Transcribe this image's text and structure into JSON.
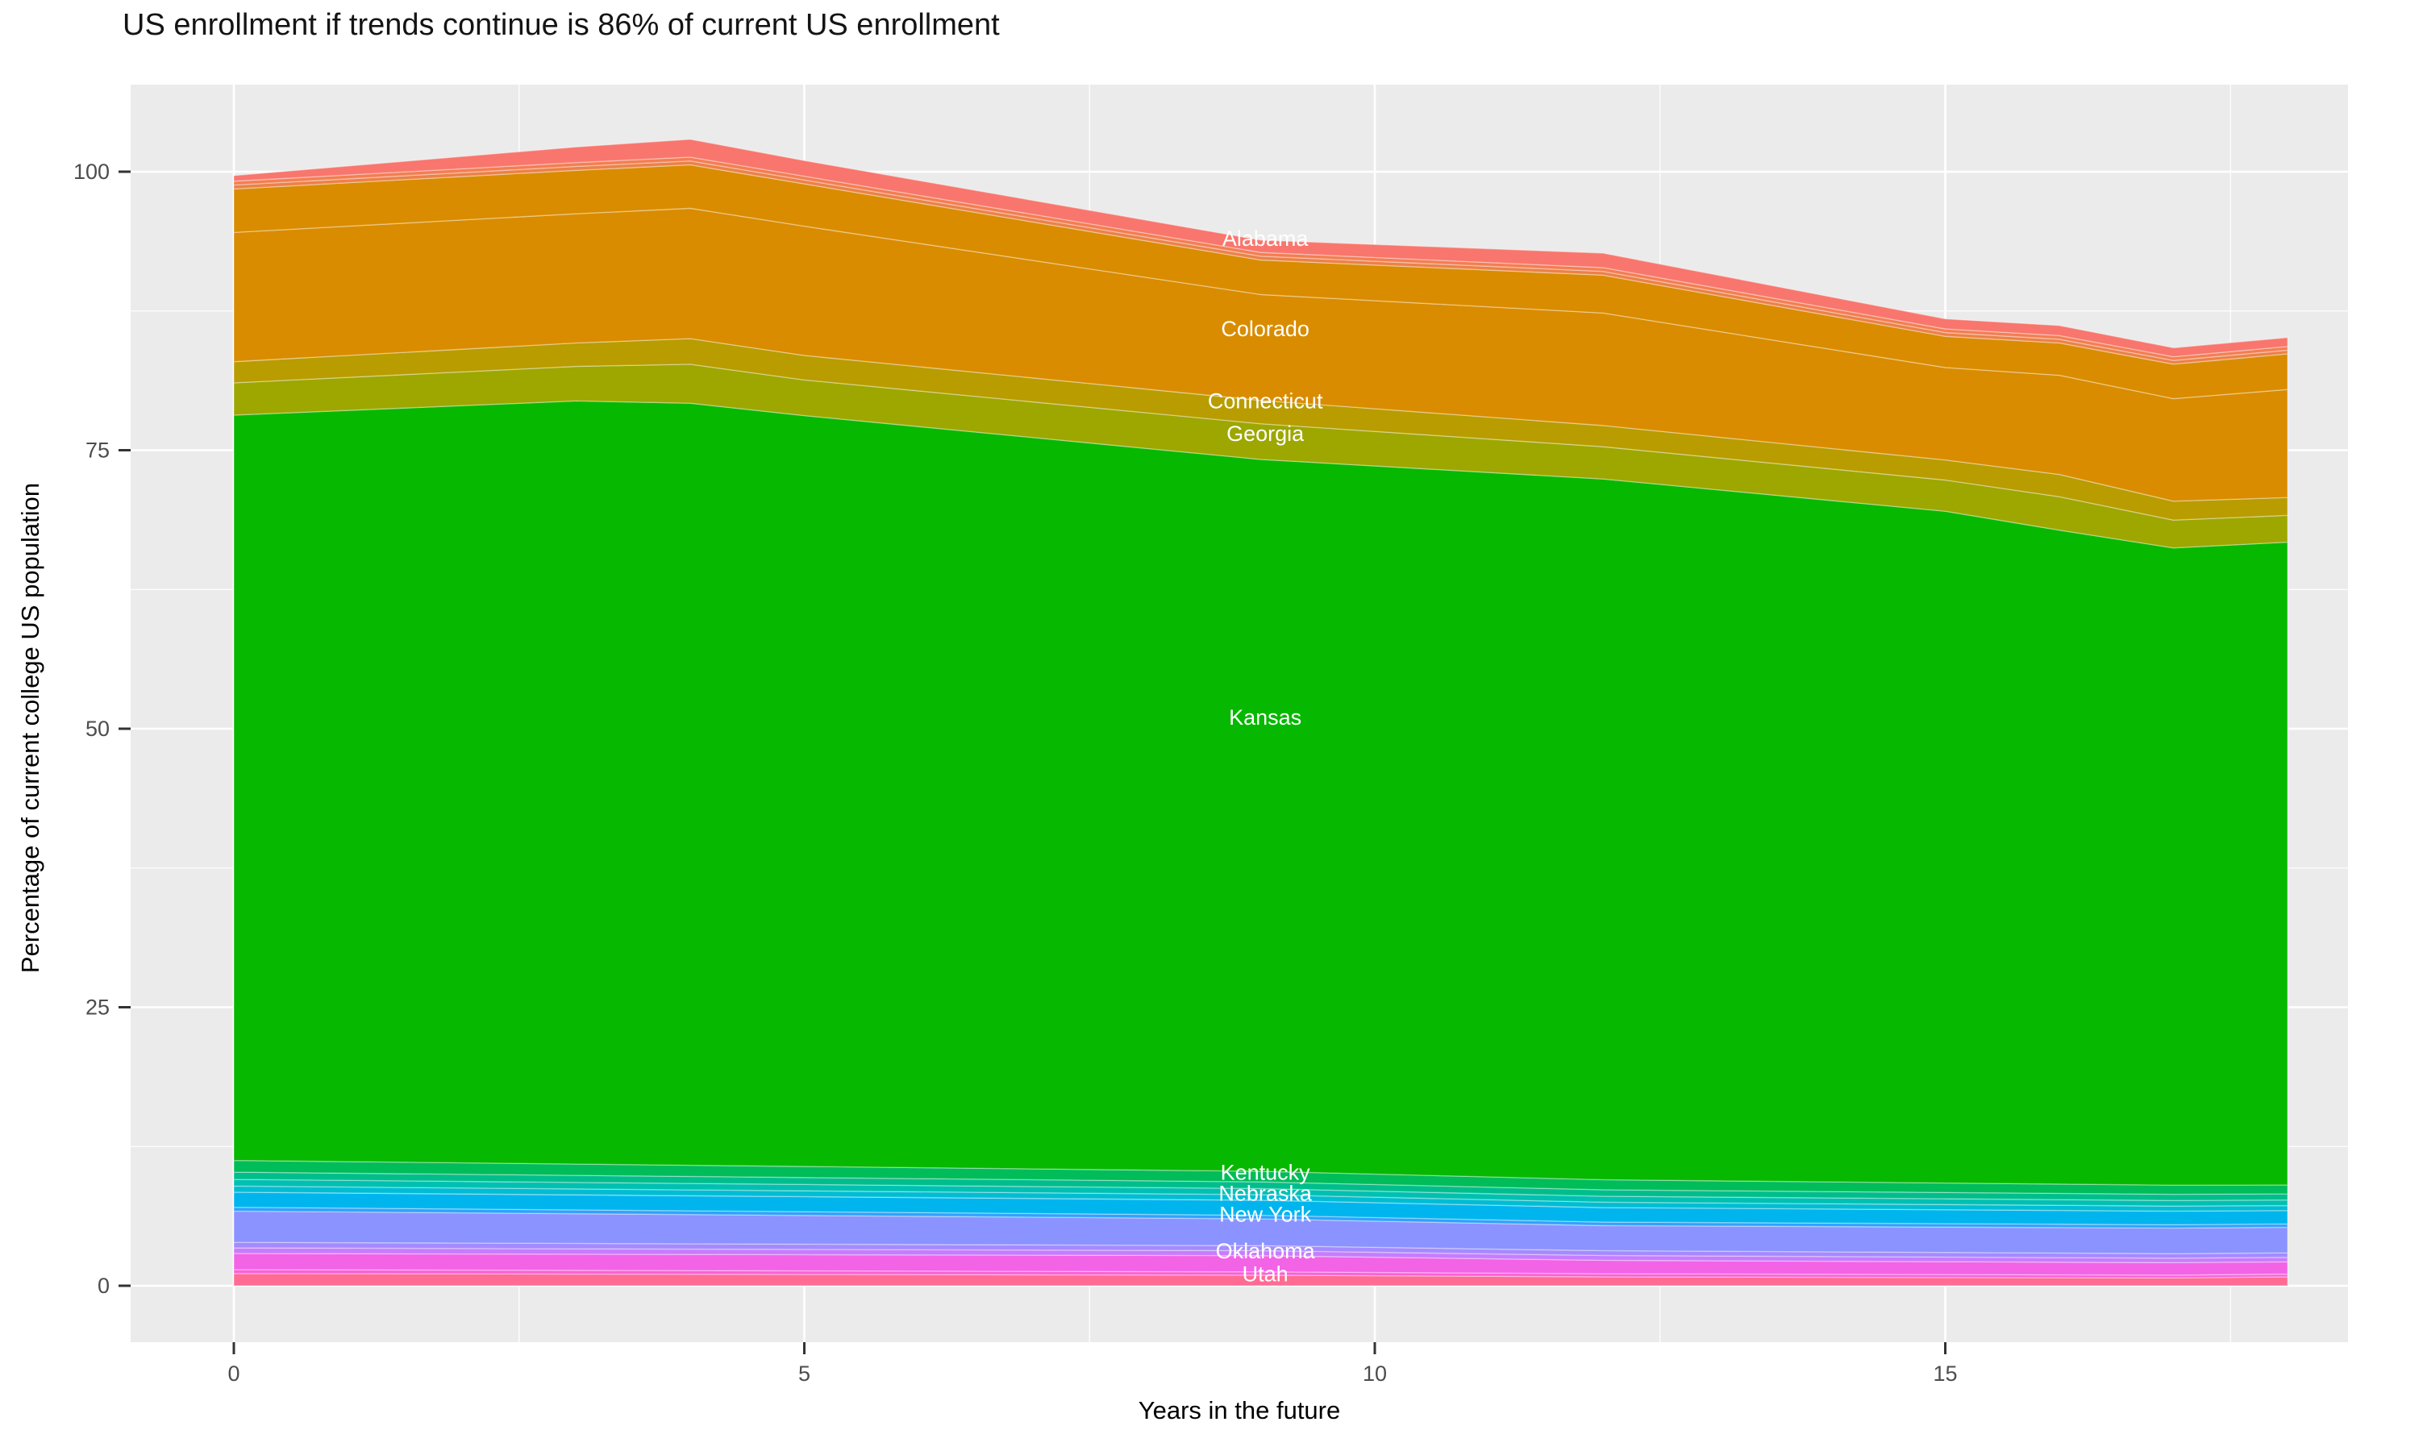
{
  "title": "US enrollment if trends continue is 86% of current US enrollment",
  "chart_data": {
    "type": "area",
    "stacked": true,
    "title": "US enrollment if trends continue is 86% of current US enrollment",
    "xlabel": "Years in the future",
    "ylabel": "Percentage of current college US population",
    "xlim": [
      0,
      18
    ],
    "ylim": [
      0,
      103.5
    ],
    "grid": "on",
    "legend_position": "none",
    "panel_background": "#EBEBEB",
    "gridline_color": "#FFFFFF",
    "tick_color": "#333333",
    "tick_label_color": "#4D4D4D",
    "x_major_ticks": [
      0,
      5,
      10,
      15
    ],
    "x_major_tick_labels": [
      "0",
      "5",
      "10",
      "15"
    ],
    "x_minor_ticks": [
      2.5,
      7.5,
      12.5,
      17.5
    ],
    "y_major_ticks": [
      0,
      25,
      50,
      75,
      100
    ],
    "y_major_tick_labels": [
      "0",
      "25",
      "50",
      "75",
      "100"
    ],
    "y_minor_ticks": [
      12.5,
      37.5,
      62.5,
      87.5
    ],
    "sample_t": [
      0,
      3,
      4,
      5,
      9,
      12,
      15,
      16,
      17,
      18
    ],
    "bands_note": "stacked areas listed bottom-to-top; v = band thickness in % of current US enrollment at knot times t",
    "bands": [
      {
        "name": "tail-states-rose",
        "color": "#FF6B94",
        "t": [
          0,
          9,
          12,
          17,
          18
        ],
        "v": [
          1.1,
          0.95,
          0.8,
          0.7,
          0.8
        ]
      },
      {
        "name": "utah-pink",
        "color": "#FB61D7",
        "t": [
          0,
          18
        ],
        "v": [
          0.35,
          0.25
        ]
      },
      {
        "name": "texas-magenta",
        "color": "#F263E6",
        "t": [
          0,
          9,
          12,
          18
        ],
        "v": [
          1.45,
          1.45,
          1.2,
          1.1
        ]
      },
      {
        "name": "oklahoma-violet",
        "color": "#C77CFF",
        "t": [
          0,
          18
        ],
        "v": [
          0.5,
          0.4
        ]
      },
      {
        "name": "violet-strip",
        "color": "#A58AFF",
        "t": [
          0,
          18
        ],
        "v": [
          0.5,
          0.4
        ]
      },
      {
        "name": "newyork-periwinkle",
        "color": "#8A93FF",
        "t": [
          0,
          9,
          12,
          18
        ],
        "v": [
          2.8,
          2.4,
          2.25,
          2.3
        ]
      },
      {
        "name": "blue-strip",
        "color": "#2FA2FF",
        "t": [
          0,
          18
        ],
        "v": [
          0.35,
          0.3
        ]
      },
      {
        "name": "nebraska-cyan",
        "color": "#00B5EE",
        "t": [
          0,
          9,
          18
        ],
        "v": [
          1.35,
          1.35,
          1.2
        ]
      },
      {
        "name": "teal-cyan-strip",
        "color": "#00BDD4",
        "t": [
          0,
          18
        ],
        "v": [
          0.55,
          0.45
        ]
      },
      {
        "name": "teal-strip",
        "color": "#00C0B2",
        "t": [
          0,
          18
        ],
        "v": [
          0.6,
          0.5
        ]
      },
      {
        "name": "seagreen-strip",
        "color": "#00BE8C",
        "t": [
          0,
          18
        ],
        "v": [
          0.65,
          0.55
        ]
      },
      {
        "name": "kentucky-green",
        "color": "#00BC59",
        "t": [
          0,
          9,
          12,
          18
        ],
        "v": [
          1.05,
          0.95,
          0.9,
          0.8
        ]
      },
      {
        "name": "kansas-green",
        "color": "#07B800",
        "t": [
          0,
          3,
          4,
          5,
          9,
          12,
          15,
          16,
          17,
          18
        ],
        "v": [
          66.9,
          68.5,
          68.4,
          67.4,
          63.9,
          62.9,
          60.3,
          58.7,
          57.2,
          57.7
        ]
      },
      {
        "name": "georgia-olive",
        "color": "#9DA700",
        "t": [
          0,
          3,
          4,
          5,
          9,
          12,
          15,
          16,
          17,
          18
        ],
        "v": [
          2.9,
          3.1,
          3.5,
          3.2,
          3.2,
          2.9,
          2.8,
          3.0,
          2.5,
          2.4
        ]
      },
      {
        "name": "connecticut-olive",
        "color": "#B89C00",
        "t": [
          0,
          3,
          4,
          5,
          9,
          12,
          15,
          16,
          17,
          18
        ],
        "v": [
          1.9,
          2.1,
          2.3,
          2.2,
          2.1,
          1.9,
          1.8,
          2.0,
          1.7,
          1.6
        ]
      },
      {
        "name": "colorado-orange-lower",
        "color": "#D98C00",
        "t": [
          0,
          3,
          4,
          5,
          9,
          12,
          15,
          16,
          17,
          18
        ],
        "v": [
          11.6,
          11.6,
          11.7,
          11.6,
          9.5,
          10.1,
          8.3,
          8.9,
          9.2,
          9.7
        ]
      },
      {
        "name": "california-orange-upper",
        "color": "#D98C00",
        "t": [
          0,
          3,
          4,
          5,
          9,
          12,
          15,
          16,
          17,
          18
        ],
        "v": [
          3.9,
          3.9,
          3.9,
          3.8,
          3.1,
          3.4,
          2.8,
          2.9,
          3.1,
          3.2
        ]
      },
      {
        "name": "orange-salmon-strip",
        "color": "#EC8147",
        "t": [
          0,
          18
        ],
        "v": [
          0.35,
          0.33
        ]
      },
      {
        "name": "salmon-strip",
        "color": "#F37E52",
        "t": [
          0,
          18
        ],
        "v": [
          0.35,
          0.33
        ]
      },
      {
        "name": "alabama-salmon",
        "color": "#F8766D",
        "t": [
          0,
          3,
          4,
          5,
          9,
          12,
          15,
          16,
          17,
          18
        ],
        "v": [
          0.5,
          1.4,
          1.6,
          1.4,
          1.1,
          1.3,
          0.9,
          0.9,
          0.8,
          0.8
        ]
      }
    ],
    "band_labels": [
      {
        "text": "Alabama",
        "t": 9.04,
        "value": 94.0
      },
      {
        "text": "Colorado",
        "t": 9.04,
        "value": 85.9
      },
      {
        "text": "Connecticut",
        "t": 9.04,
        "value": 79.4
      },
      {
        "text": "Georgia",
        "t": 9.04,
        "value": 76.5
      },
      {
        "text": "Kansas",
        "t": 9.04,
        "value": 51.0
      },
      {
        "text": "Kentucky",
        "t": 9.04,
        "value": 10.15
      },
      {
        "text": "Nebraska",
        "t": 9.04,
        "value": 8.3
      },
      {
        "text": "New York",
        "t": 9.04,
        "value": 6.4
      },
      {
        "text": "Oklahoma",
        "t": 9.04,
        "value": 3.1
      },
      {
        "text": "Utah",
        "t": 9.04,
        "value": 1.05
      }
    ],
    "band_label_color": "#FFFFFF"
  }
}
